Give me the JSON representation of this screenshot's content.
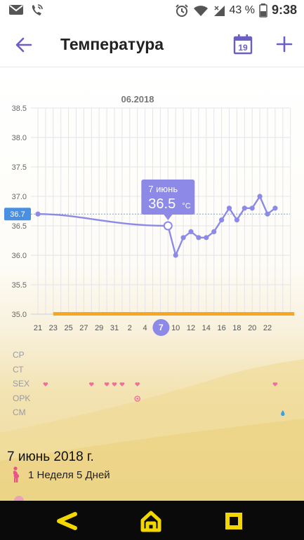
{
  "status_bar": {
    "battery_percent": "43 %",
    "time": "9:38"
  },
  "app_bar": {
    "title": "Температура",
    "calendar_day": "19"
  },
  "chart_data": {
    "type": "line",
    "title": "06.2018",
    "xlabel": "",
    "ylabel": "",
    "ylim": [
      35.0,
      38.5
    ],
    "y_ticks": [
      "35.0",
      "35.5",
      "36.0",
      "36.5",
      "37.0",
      "37.5",
      "38.0",
      "38.5"
    ],
    "x_tick_labels": [
      "21",
      "23",
      "25",
      "27",
      "29",
      "31",
      "2",
      "4",
      "7",
      "10",
      "12",
      "14",
      "16",
      "18",
      "20",
      "22"
    ],
    "selected_x": "7",
    "coverline": 36.7,
    "coverline_label": "36.7",
    "series": [
      {
        "points": [
          {
            "x": 0,
            "y": 36.7
          },
          {
            "x": 17,
            "y": 36.5
          },
          {
            "x": 18,
            "y": 36.0
          },
          {
            "x": 19,
            "y": 36.3
          },
          {
            "x": 20,
            "y": 36.4
          },
          {
            "x": 21,
            "y": 36.3
          },
          {
            "x": 22,
            "y": 36.3
          },
          {
            "x": 23,
            "y": 36.4
          },
          {
            "x": 24,
            "y": 36.6
          },
          {
            "x": 25,
            "y": 36.8
          },
          {
            "x": 26,
            "y": 36.6
          },
          {
            "x": 27,
            "y": 36.8
          },
          {
            "x": 28,
            "y": 36.8
          },
          {
            "x": 29,
            "y": 37.0
          },
          {
            "x": 30,
            "y": 36.7
          },
          {
            "x": 31,
            "y": 36.8
          }
        ]
      }
    ],
    "tooltip": {
      "date": "7 июнь",
      "value": "36.5",
      "unit": "°C"
    },
    "period_bar": {
      "from": 2,
      "to": 33.5
    }
  },
  "indicators": {
    "labels": [
      "СР",
      "СТ",
      "SEX",
      "OPK",
      "CM"
    ],
    "sex_days": [
      1,
      7,
      9,
      10,
      11,
      13,
      31
    ],
    "opk_days": [
      13
    ],
    "cm_days": [
      32
    ],
    "colors": {
      "sex": "#ef6f9c",
      "opk": "#ef6f9c",
      "cm": "#3f9fe0"
    }
  },
  "details": {
    "date_title": "7 июнь 2018 г.",
    "week_text": "1 Неделя 5 Дней"
  },
  "icons": {
    "back": "arrow-left-icon",
    "calendar": "calendar-icon",
    "add": "plus-icon",
    "pregnancy": "pregnant-woman-icon",
    "nav_back": "back-triangle-icon",
    "nav_home": "home-icon",
    "nav_recents": "recents-square-icon"
  },
  "colors": {
    "accent": "#8c8ae6",
    "period": "#f5a623",
    "nav_icon": "#f2d600"
  }
}
